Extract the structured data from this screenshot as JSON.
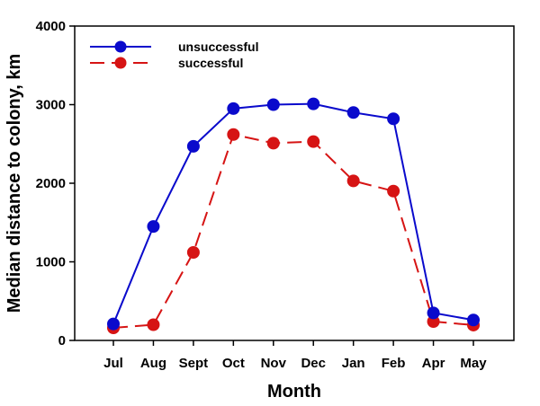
{
  "chart_data": {
    "type": "line",
    "title": "",
    "xlabel": "Month",
    "ylabel": "Median distance to colony, km",
    "categories": [
      "Jul",
      "Aug",
      "Sept",
      "Oct",
      "Nov",
      "Dec",
      "Jan",
      "Feb",
      "Apr",
      "May"
    ],
    "ylim": [
      0,
      4000
    ],
    "yticks": [
      "0",
      "1000",
      "2000",
      "3000",
      "4000"
    ],
    "grid": false,
    "legend_position": "top-left",
    "series": [
      {
        "name": "unsuccessful",
        "color": "#0a0acc",
        "line_style": "solid",
        "marker": "circle",
        "values": [
          210,
          1450,
          2470,
          2950,
          3000,
          3010,
          2900,
          2820,
          350,
          260
        ]
      },
      {
        "name": "successful",
        "color": "#d61414",
        "line_style": "dashed",
        "marker": "circle",
        "values": [
          160,
          200,
          1120,
          2620,
          2510,
          2530,
          2030,
          1900,
          240,
          195
        ]
      }
    ]
  }
}
